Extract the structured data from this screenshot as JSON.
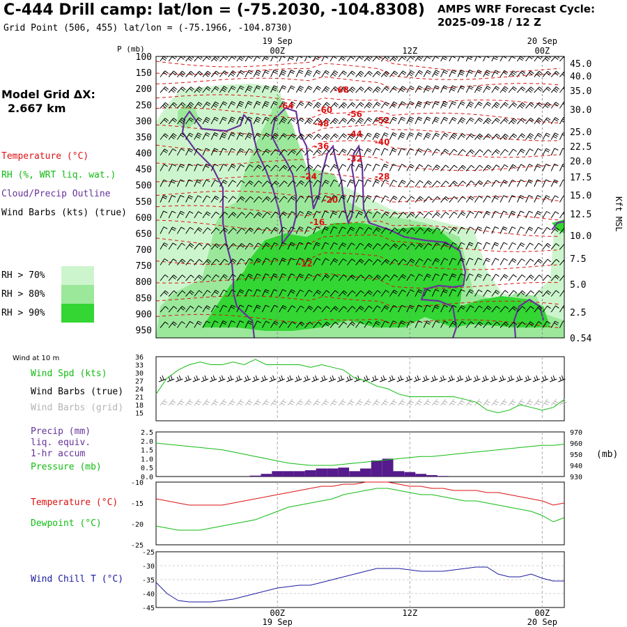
{
  "header": {
    "title": "C-444 Drill camp:  lat/lon = (-75.2030, -104.8308)",
    "subtitle": "Grid Point (506, 455) lat/lon = (-75.1966, -104.8730)",
    "cycle_line1": "AMPS WRF Forecast Cycle:",
    "cycle_line2": "2025-09-18 / 12  Z"
  },
  "left_panel": {
    "model_grid_label": "Model Grid ΔX:",
    "model_grid_value": "2.667 km",
    "legend_temperature": "Temperature (°C)",
    "legend_rh": "RH (%, WRT liq. wat.)",
    "legend_cloud": "Cloud/Precip Outline",
    "legend_wind": "Wind Barbs (kts) (true)",
    "rh_70": "RH > 70%",
    "rh_80": "RH > 80%",
    "rh_90": "RH > 90%",
    "wind10_title": "Wind at 10 m",
    "wind_spd_label": "Wind Spd (kts)",
    "wind_barbs_true": "Wind Barbs (true)",
    "wind_barbs_grid": "Wind Barbs (grid)",
    "precip_label1": "Precip (mm)",
    "precip_label2": "liq. equiv.",
    "precip_label3": "1-hr accum",
    "pressure_label": "Pressure (mb)",
    "temp_label": "Temperature (°C)",
    "dewpoint_label": "Dewpoint (°C)",
    "windchill_label": "Wind Chill T (°C)"
  },
  "colors": {
    "temperature": "#dd1111",
    "rh_text": "#11bb11",
    "cloud": "#663399",
    "rh70": "#cdf5cd",
    "rh80": "#9be89b",
    "rh90": "#33d633",
    "pressure_line": "#11bb11",
    "precip_bar": "#551a8b",
    "windchill": "#1a1aa0",
    "grid_barb": "#b4b4b4"
  },
  "chart_data": [
    {
      "type": "heatmap",
      "name": "time-height cross section",
      "x_axis_top": {
        "date_labels": [
          "19 Sep",
          "20 Sep"
        ],
        "hour_labels": [
          "00Z",
          "12Z",
          "00Z"
        ],
        "forecast_hours": [
          12,
          24,
          36
        ],
        "range_hours": [
          1,
          38
        ]
      },
      "left_axis_label": "P (mb)",
      "pressure_ticks": [
        100,
        150,
        200,
        250,
        300,
        350,
        400,
        450,
        500,
        550,
        600,
        650,
        700,
        750,
        800,
        850,
        900,
        950
      ],
      "right_axis_label": "Kft MSL",
      "height_ticks": [
        "45.0",
        "40.0",
        "35.0",
        "30.0",
        "25.0",
        "22.5",
        "20.0",
        "17.5",
        "15.0",
        "12.5",
        "10.0",
        "7.5",
        "5.0",
        "2.5",
        "0.54"
      ],
      "temperature_contour_labels": [
        {
          "label": "-68",
          "hour": 17.8,
          "p": 213
        },
        {
          "label": "-64",
          "hour": 12.8,
          "p": 262
        },
        {
          "label": "-60",
          "hour": 16.3,
          "p": 275
        },
        {
          "label": "-56",
          "hour": 19.0,
          "p": 288
        },
        {
          "label": "-52",
          "hour": 21.5,
          "p": 308
        },
        {
          "label": "-48",
          "hour": 16.0,
          "p": 318
        },
        {
          "label": "-44",
          "hour": 19.0,
          "p": 350
        },
        {
          "label": "-40",
          "hour": 21.5,
          "p": 375
        },
        {
          "label": "-36",
          "hour": 16.0,
          "p": 388
        },
        {
          "label": "-32",
          "hour": 19.0,
          "p": 427
        },
        {
          "label": "-28",
          "hour": 21.5,
          "p": 482
        },
        {
          "label": "-24",
          "hour": 14.9,
          "p": 482
        },
        {
          "label": "-20",
          "hour": 16.8,
          "p": 555
        },
        {
          "label": "-16",
          "hour": 15.6,
          "p": 624
        },
        {
          "label": "-12",
          "hour": 14.5,
          "p": 753
        }
      ]
    },
    {
      "type": "line",
      "name": "10 m wind speed",
      "y_ticks": [
        15,
        18,
        21,
        24,
        27,
        30,
        33,
        36
      ],
      "ylim": [
        12,
        36
      ],
      "x": [
        1,
        2,
        3,
        4,
        5,
        6,
        7,
        8,
        9,
        10,
        11,
        12,
        13,
        14,
        15,
        16,
        17,
        18,
        19,
        20,
        21,
        22,
        23,
        24,
        25,
        26,
        27,
        28,
        29,
        30,
        31,
        32,
        33,
        34,
        35,
        36,
        37,
        38
      ],
      "wind_speed_kts": [
        22,
        28,
        31,
        33,
        34,
        33,
        33,
        34,
        33,
        35,
        33,
        33,
        33,
        33,
        32,
        33,
        32,
        31,
        28,
        27,
        25,
        24,
        22,
        21,
        21,
        21,
        21,
        21,
        20,
        19,
        16,
        15,
        16,
        18,
        17,
        16,
        17,
        20
      ]
    },
    {
      "type": "bar",
      "name": "precipitation and pressure",
      "left_ticks": [
        "0.0",
        "0.5",
        "1.0",
        "1.5",
        "2.0",
        "2.5"
      ],
      "right_ticks": [
        930,
        940,
        950,
        960,
        970
      ],
      "ylim_precip": [
        0,
        2.5
      ],
      "ylim_pressure": [
        930,
        970
      ],
      "right_axis_label": "(mb)",
      "x": [
        1,
        2,
        3,
        4,
        5,
        6,
        7,
        8,
        9,
        10,
        11,
        12,
        13,
        14,
        15,
        16,
        17,
        18,
        19,
        20,
        21,
        22,
        23,
        24,
        25,
        26,
        27,
        28,
        29,
        30,
        31,
        32,
        33,
        34,
        35,
        36,
        37,
        38
      ],
      "precip_mm": [
        0,
        0,
        0,
        0,
        0,
        0,
        0,
        0,
        0,
        0.05,
        0.15,
        0.3,
        0.3,
        0.3,
        0.35,
        0.45,
        0.45,
        0.5,
        0.3,
        0.45,
        0.9,
        1.0,
        0.3,
        0.25,
        0.15,
        0.08,
        0.03,
        0,
        0,
        0,
        0,
        0,
        0,
        0,
        0,
        0,
        0,
        0
      ],
      "pressure_mb": [
        960,
        959,
        958,
        957,
        956,
        955,
        954,
        952,
        950,
        948,
        946,
        944,
        942,
        941,
        940,
        940,
        940,
        941,
        942,
        943,
        944,
        945,
        946,
        947,
        948,
        948,
        949,
        950,
        951,
        952,
        953,
        954,
        955,
        956,
        957,
        958,
        958,
        959
      ]
    },
    {
      "type": "line",
      "name": "temperature and dewpoint",
      "y_ticks": [
        -10,
        -15,
        -20,
        -25
      ],
      "ylim": [
        -25,
        -10
      ],
      "x": [
        1,
        2,
        3,
        4,
        5,
        6,
        7,
        8,
        9,
        10,
        11,
        12,
        13,
        14,
        15,
        16,
        17,
        18,
        19,
        20,
        21,
        22,
        23,
        24,
        25,
        26,
        27,
        28,
        29,
        30,
        31,
        32,
        33,
        34,
        35,
        36,
        37,
        38
      ],
      "series": [
        {
          "name": "Temperature",
          "values": [
            -14,
            -14.5,
            -15,
            -15.5,
            -15.5,
            -15.5,
            -15.5,
            -15,
            -14.5,
            -14,
            -13.5,
            -13,
            -12.5,
            -12,
            -11.5,
            -11,
            -11,
            -10.5,
            -10.5,
            -10,
            -10,
            -10,
            -10.5,
            -11,
            -11,
            -11.5,
            -11.5,
            -12,
            -12,
            -12,
            -12.5,
            -12.5,
            -13,
            -13.5,
            -14,
            -14.5,
            -15.5,
            -15
          ]
        },
        {
          "name": "Dewpoint",
          "values": [
            -20.5,
            -21,
            -21.5,
            -21.5,
            -21.5,
            -21,
            -20.5,
            -20,
            -19.5,
            -19,
            -18,
            -17,
            -16,
            -15.5,
            -15,
            -14.5,
            -14,
            -13,
            -12.5,
            -12,
            -11.5,
            -11.5,
            -12,
            -12.5,
            -13,
            -13,
            -13.5,
            -14,
            -14.5,
            -14.5,
            -15,
            -15.5,
            -16,
            -16.5,
            -17,
            -18,
            -19.5,
            -18.5
          ]
        }
      ]
    },
    {
      "type": "line",
      "name": "wind chill",
      "y_ticks": [
        -25,
        -30,
        -35,
        -40,
        -45
      ],
      "ylim": [
        -45,
        -25
      ],
      "x": [
        1,
        2,
        3,
        4,
        5,
        6,
        7,
        8,
        9,
        10,
        11,
        12,
        13,
        14,
        15,
        16,
        17,
        18,
        19,
        20,
        21,
        22,
        23,
        24,
        25,
        26,
        27,
        28,
        29,
        30,
        31,
        32,
        33,
        34,
        35,
        36,
        37,
        38
      ],
      "windchill_c": [
        -36,
        -40,
        -42.5,
        -43,
        -43,
        -43,
        -42.5,
        -42,
        -41,
        -40,
        -39,
        -38,
        -37.5,
        -37,
        -37,
        -36,
        -35,
        -34,
        -33,
        -32,
        -31,
        -31,
        -31,
        -31.5,
        -32,
        -32,
        -32,
        -31.5,
        -31,
        -30.5,
        -30.5,
        -33,
        -34,
        -34,
        -33,
        -34.5,
        -35.5,
        -35.5
      ]
    }
  ],
  "bottom_axis": {
    "hour_labels": [
      "00Z",
      "12Z",
      "00Z"
    ],
    "date_labels": [
      "19 Sep",
      "20 Sep"
    ]
  }
}
